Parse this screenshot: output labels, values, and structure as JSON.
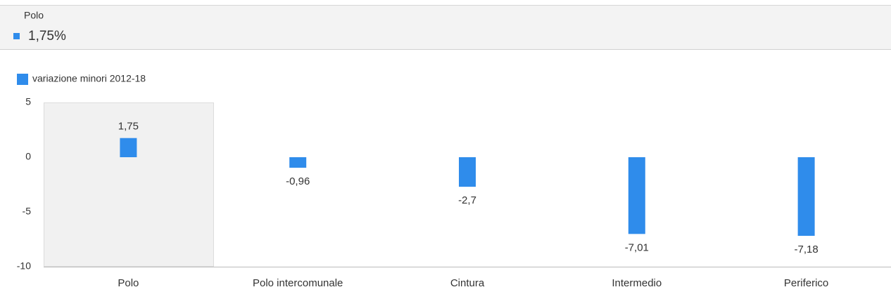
{
  "tooltip": {
    "title": "Polo",
    "value_label": "1,75%"
  },
  "chart_data": {
    "type": "bar",
    "categories": [
      "Polo",
      "Polo intercomunale",
      "Cintura",
      "Intermedio",
      "Periferico"
    ],
    "series": [
      {
        "name": "variazione minori 2012-18",
        "color": "#2f8ceb",
        "values": [
          1.75,
          -0.96,
          -2.7,
          -7.01,
          -7.18
        ],
        "value_labels": [
          "1,75",
          "-0,96",
          "-2,7",
          "-7,01",
          "-7,18"
        ]
      }
    ],
    "ylim": [
      -10,
      5
    ],
    "yticks": [
      5,
      0,
      -5,
      -10
    ],
    "grid": false,
    "legend": "top-left"
  }
}
